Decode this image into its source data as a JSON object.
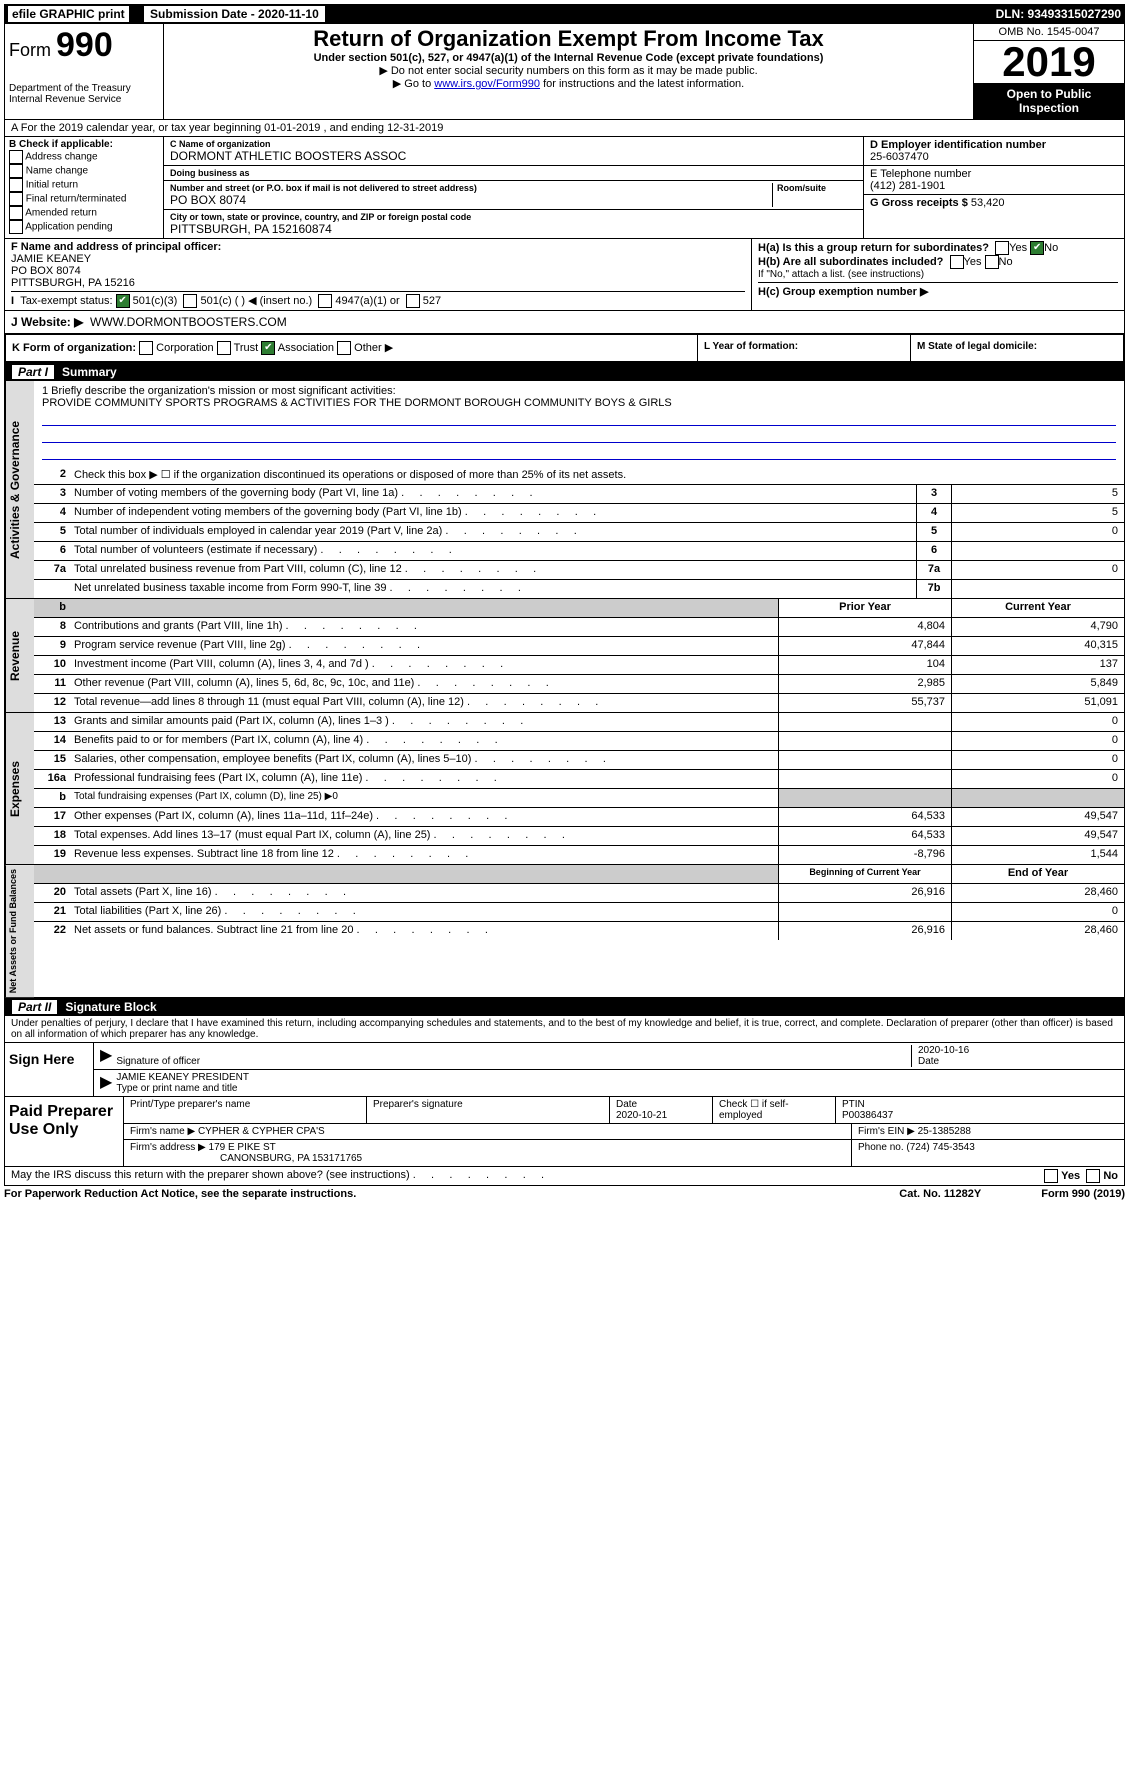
{
  "topbar": {
    "efile": "efile GRAPHIC print",
    "sublabel": "Submission Date - 2020-11-10",
    "dln": "DLN: 93493315027290"
  },
  "header": {
    "form": "Form",
    "num": "990",
    "dept": "Department of the Treasury\nInternal Revenue Service",
    "title": "Return of Organization Exempt From Income Tax",
    "sub": "Under section 501(c), 527, or 4947(a)(1) of the Internal Revenue Code (except private foundations)",
    "note1": "▶ Do not enter social security numbers on this form as it may be made public.",
    "note2a": "▶ Go to ",
    "link": "www.irs.gov/Form990",
    "note2b": " for instructions and the latest information.",
    "omb": "OMB No. 1545-0047",
    "year": "2019",
    "otp": "Open to Public Inspection"
  },
  "rowA": "A For the 2019 calendar year, or tax year beginning 01-01-2019   , and ending 12-31-2019",
  "colB": {
    "hdr": "B Check if applicable:",
    "items": [
      "Address change",
      "Name change",
      "Initial return",
      "Final return/terminated",
      "Amended return",
      "Application pending"
    ]
  },
  "colC": {
    "namelbl": "C Name of organization",
    "name": "DORMONT ATHLETIC BOOSTERS ASSOC",
    "dbalbl": "Doing business as",
    "dba": "",
    "addrlbl": "Number and street (or P.O. box if mail is not delivered to street address)",
    "roomlbl": "Room/suite",
    "addr": "PO BOX 8074",
    "citylbl": "City or town, state or province, country, and ZIP or foreign postal code",
    "city": "PITTSBURGH, PA  152160874"
  },
  "colD": {
    "einlbl": "D Employer identification number",
    "ein": "25-6037470",
    "tellbl": "E Telephone number",
    "tel": "(412) 281-1901",
    "grosslbl": "G Gross receipts $ ",
    "gross": "53,420"
  },
  "rowF": {
    "lbl": "F Name and address of principal officer:",
    "name": "JAMIE KEANEY",
    "addr1": "PO BOX 8074",
    "addr2": "PITTSBURGH, PA  15216"
  },
  "rowH": {
    "ha": "H(a)  Is this a group return for subordinates?",
    "hb": "H(b)  Are all subordinates included?",
    "hbNote": "If \"No,\" attach a list. (see instructions)",
    "hc": "H(c)  Group exemption number ▶"
  },
  "rowI": {
    "lbl": "Tax-exempt status:",
    "o1": "501(c)(3)",
    "o2": "501(c) (  ) ◀ (insert no.)",
    "o3": "4947(a)(1) or",
    "o4": "527"
  },
  "rowJ": {
    "lbl": "J   Website: ▶",
    "val": "WWW.DORMONTBOOSTERS.COM"
  },
  "rowK": {
    "lbl": "K Form of organization:",
    "opts": [
      "Corporation",
      "Trust",
      "Association",
      "Other ▶"
    ],
    "checkedIdx": 2,
    "l": "L Year of formation:",
    "m": "M State of legal domicile:"
  },
  "part1": {
    "label": "Part I",
    "title": "Summary"
  },
  "mission": {
    "q": "1  Briefly describe the organization's mission or most significant activities:",
    "text": "PROVIDE COMMUNITY SPORTS PROGRAMS & ACTIVITIES FOR THE DORMONT BOROUGH COMMUNITY BOYS & GIRLS"
  },
  "gov": {
    "l2": "Check this box ▶ ☐  if the organization discontinued its operations or disposed of more than 25% of its net assets.",
    "rows": [
      {
        "n": "3",
        "d": "Number of voting members of the governing body (Part VI, line 1a)",
        "b": "3",
        "v": "5"
      },
      {
        "n": "4",
        "d": "Number of independent voting members of the governing body (Part VI, line 1b)",
        "b": "4",
        "v": "5"
      },
      {
        "n": "5",
        "d": "Total number of individuals employed in calendar year 2019 (Part V, line 2a)",
        "b": "5",
        "v": "0"
      },
      {
        "n": "6",
        "d": "Total number of volunteers (estimate if necessary)",
        "b": "6",
        "v": ""
      },
      {
        "n": "7a",
        "d": "Total unrelated business revenue from Part VIII, column (C), line 12",
        "b": "7a",
        "v": "0"
      },
      {
        "n": "",
        "d": "Net unrelated business taxable income from Form 990-T, line 39",
        "b": "7b",
        "v": ""
      }
    ]
  },
  "rev": {
    "hdr": {
      "py": "Prior Year",
      "cy": "Current Year"
    },
    "rows": [
      {
        "n": "8",
        "d": "Contributions and grants (Part VIII, line 1h)",
        "py": "4,804",
        "cy": "4,790"
      },
      {
        "n": "9",
        "d": "Program service revenue (Part VIII, line 2g)",
        "py": "47,844",
        "cy": "40,315"
      },
      {
        "n": "10",
        "d": "Investment income (Part VIII, column (A), lines 3, 4, and 7d )",
        "py": "104",
        "cy": "137"
      },
      {
        "n": "11",
        "d": "Other revenue (Part VIII, column (A), lines 5, 6d, 8c, 9c, 10c, and 11e)",
        "py": "2,985",
        "cy": "5,849"
      },
      {
        "n": "12",
        "d": "Total revenue—add lines 8 through 11 (must equal Part VIII, column (A), line 12)",
        "py": "55,737",
        "cy": "51,091"
      }
    ]
  },
  "exp": {
    "rows": [
      {
        "n": "13",
        "d": "Grants and similar amounts paid (Part IX, column (A), lines 1–3 )",
        "py": "",
        "cy": "0"
      },
      {
        "n": "14",
        "d": "Benefits paid to or for members (Part IX, column (A), line 4)",
        "py": "",
        "cy": "0"
      },
      {
        "n": "15",
        "d": "Salaries, other compensation, employee benefits (Part IX, column (A), lines 5–10)",
        "py": "",
        "cy": "0"
      },
      {
        "n": "16a",
        "d": "Professional fundraising fees (Part IX, column (A), line 11e)",
        "py": "",
        "cy": "0"
      },
      {
        "n": "b",
        "d": "Total fundraising expenses (Part IX, column (D), line 25) ▶0",
        "py": null,
        "cy": null
      },
      {
        "n": "17",
        "d": "Other expenses (Part IX, column (A), lines 11a–11d, 11f–24e)",
        "py": "64,533",
        "cy": "49,547"
      },
      {
        "n": "18",
        "d": "Total expenses. Add lines 13–17 (must equal Part IX, column (A), line 25)",
        "py": "64,533",
        "cy": "49,547"
      },
      {
        "n": "19",
        "d": "Revenue less expenses. Subtract line 18 from line 12",
        "py": "-8,796",
        "cy": "1,544"
      }
    ]
  },
  "na": {
    "hdr": {
      "py": "Beginning of Current Year",
      "cy": "End of Year"
    },
    "rows": [
      {
        "n": "20",
        "d": "Total assets (Part X, line 16)",
        "py": "26,916",
        "cy": "28,460"
      },
      {
        "n": "21",
        "d": "Total liabilities (Part X, line 26)",
        "py": "",
        "cy": "0"
      },
      {
        "n": "22",
        "d": "Net assets or fund balances. Subtract line 21 from line 20",
        "py": "26,916",
        "cy": "28,460"
      }
    ]
  },
  "part2": {
    "label": "Part II",
    "title": "Signature Block"
  },
  "sigtext": "Under penalties of perjury, I declare that I have examined this return, including accompanying schedules and statements, and to the best of my knowledge and belief, it is true, correct, and complete. Declaration of preparer (other than officer) is based on all information of which preparer has any knowledge.",
  "sign": {
    "here": "Sign Here",
    "siglbl": "Signature of officer",
    "date": "2020-10-16",
    "datelbl": "Date",
    "name": "JAMIE KEANEY  PRESIDENT",
    "namelbl": "Type or print name and title"
  },
  "paid": {
    "lbl": "Paid Preparer Use Only",
    "r1": {
      "a": "Print/Type preparer's name",
      "b": "Preparer's signature",
      "c": "Date",
      "cd": "2020-10-21",
      "d": "Check ☐ if self-employed",
      "e": "PTIN",
      "ev": "P00386437"
    },
    "r2": {
      "a": "Firm's name    ▶ CYPHER & CYPHER CPA'S",
      "b": "Firm's EIN ▶ 25-1385288"
    },
    "r3": {
      "a": "Firm's address ▶ 179 E PIKE ST",
      "b": "Phone no. (724) 745-3543"
    },
    "r3b": "CANONSBURG, PA  153171765"
  },
  "discuss": "May the IRS discuss this return with the preparer shown above? (see instructions)",
  "pra": {
    "l": "For Paperwork Reduction Act Notice, see the separate instructions.",
    "m": "Cat. No. 11282Y",
    "r": "Form 990 (2019)"
  }
}
